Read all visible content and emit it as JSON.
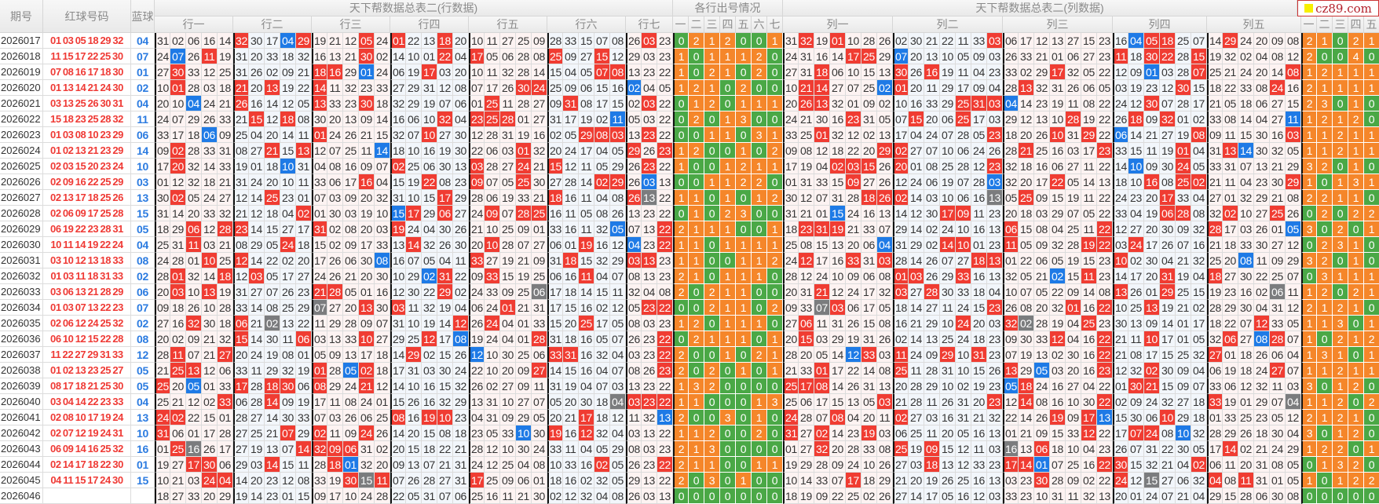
{
  "header": {
    "issue": "期号",
    "red": "红球号码",
    "blue": "蓝球",
    "row_table_title": "天下帮数据总表二(行数据)",
    "row_count_title": "各行出号情况",
    "col_table_title": "天下帮数据总表二(列数据)",
    "logo_text": "cz89.com",
    "row_groups": [
      "行一",
      "行二",
      "行三",
      "行四",
      "行五",
      "行六",
      "行七"
    ],
    "row_count_labels": [
      "一",
      "二",
      "三",
      "四",
      "五",
      "六",
      "七"
    ],
    "col_groups": [
      "列一",
      "列二",
      "列三",
      "列四",
      "列五"
    ],
    "col_count_labels": [
      "一",
      "二",
      "三",
      "四",
      "五"
    ]
  },
  "colors": {
    "red_hit": "#f03c32",
    "blue_hit": "#1e7ae6",
    "both_hit": "#7b7c7e",
    "count_zero": "#4aa846",
    "count_nonzero": "#f5862a",
    "red_text": "#ef3a35",
    "blue_text": "#2b7be0"
  },
  "rows": [
    {
      "issue": "2026017",
      "red": "01 03 05 18 29 32",
      "blue": "04",
      "row_groups": "31 02 06 16 14|32 30 17 04 29|19 21 12 05 24|01 22 13 18 20|10 11 27 25 09|28 33 15 07 08|26 03 23",
      "row_counts": "0 2 1 2 0 0 1",
      "col_groups": "31 32 19 01 10 28 26|02 30 21 22 11 33 03|06 17 12 13 27 15 23|16 04 05 18 25 07|14 29 24 20 09 08",
      "col_counts": "2 1 0 2 1"
    },
    {
      "issue": "2026018",
      "red": "11 15 17 22 25 30",
      "blue": "07",
      "row_groups": "24 07 26 11 19|31 20 33 18 32|16 13 21 30 02|14 10 01 22 04|17 05 06 28 08|25 09 27 15 12|29 03 23",
      "row_counts": "1 0 1 1 1 2 0",
      "col_groups": "24 31 16 14 17 25 29|07 20 13 10 05 09 03|26 33 21 01 06 27 23|11 18 30 22 28 15|19 32 02 04 08 12",
      "col_counts": "2 0 0 4 0"
    },
    {
      "issue": "2026019",
      "red": "07 08 16 17 18 30",
      "blue": "01",
      "row_groups": "27 30 33 12 25|31 26 02 09 21|18 16 29 01 24|06 19 17 03 20|10 11 32 28 14|15 04 05 07 08|13 23 22",
      "row_counts": "1 0 2 1 0 2 0",
      "col_groups": "27 31 18 06 10 15 13|30 26 16 19 11 04 23|33 02 29 17 32 05 22|12 09 01 03 28 07|25 21 24 20 14 08",
      "col_counts": "1 2 1 1 1"
    },
    {
      "issue": "2026020",
      "red": "01 13 14 21 24 30",
      "blue": "02",
      "row_groups": "10 01 28 03 18|21 20 13 19 22|14 11 32 23 33|27 29 31 12 08|07 17 26 30 24|25 09 06 15 16|02 04 05",
      "row_counts": "1 2 1 0 2 0 0",
      "col_groups": "10 21 14 27 07 25 02|01 20 11 29 17 09 04|28 13 32 31 26 06 05|03 19 23 12 30 15|18 22 33 08 24 16",
      "col_counts": "2 1 1 1 1"
    },
    {
      "issue": "2026021",
      "red": "03 13 25 26 30 31",
      "blue": "04",
      "row_groups": "20 10 04 24 21|26 16 14 12 05|13 33 23 30 18|32 29 19 07 06|01 25 11 28 27|09 31 08 17 15|02 03 22",
      "row_counts": "0 1 2 0 1 1 1",
      "col_groups": "20 26 13 32 01 09 02|10 16 33 29 25 31 03|04 14 23 19 11 08 22|24 12 30 07 28 17|21 05 18 06 27 15",
      "col_counts": "2 3 0 1 0"
    },
    {
      "issue": "2026022",
      "red": "15 18 23 25 28 32",
      "blue": "11",
      "row_groups": "24 07 29 26 33|21 15 12 18 08|30 20 13 09 14|16 06 10 32 04|23 25 28 01 27|31 17 19 02 11|05 03 22",
      "row_counts": "0 2 0 1 3 0 0",
      "col_groups": "24 21 30 16 23 31 05|07 15 20 06 25 17 03|29 12 13 10 28 19 22|26 18 09 32 01 02|33 08 14 04 27 11",
      "col_counts": "1 2 1 2 0"
    },
    {
      "issue": "2026023",
      "red": "01 03 08 10 23 29",
      "blue": "06",
      "row_groups": "33 17 18 06 09|25 04 20 14 11|01 24 26 21 15|32 07 10 27 30|12 28 31 19 16|02 05 29 08 03|13 23 22",
      "row_counts": "0 0 1 1 0 3 1",
      "col_groups": "33 25 01 32 12 02 13|17 04 24 07 28 05 23|18 20 26 10 31 29 22|06 14 21 27 19 08|09 11 15 30 16 03",
      "col_counts": "1 1 2 1 1"
    },
    {
      "issue": "2026024",
      "red": "01 02 13 21 23 29",
      "blue": "14",
      "row_groups": "09 02 28 33 31|08 27 21 15 13|12 07 25 11 14|18 10 16 19 30|22 06 03 01 32|20 24 17 04 05|29 26 23",
      "row_counts": "1 2 0 0 1 0 2",
      "col_groups": "09 08 12 18 22 20 29|02 27 07 10 06 24 26|28 21 25 16 03 17 23|33 15 11 19 01 04|31 13 14 30 32 05",
      "col_counts": "1 1 2 1 1"
    },
    {
      "issue": "2026025",
      "red": "02 03 15 20 23 24",
      "blue": "10",
      "row_groups": "17 20 32 14 33|19 01 18 10 31|04 08 16 09 07|02 25 06 30 13|03 28 27 24 21|15 12 11 05 29|26 23 22",
      "row_counts": "1 0 0 1 2 1 1",
      "col_groups": "17 19 04 02 03 15 26|20 01 08 25 28 12 23|32 18 16 06 27 11 22|14 10 09 30 24 05|33 31 07 13 21 29",
      "col_counts": "3 2 0 1 0"
    },
    {
      "issue": "2026026",
      "red": "02 09 16 22 25 29",
      "blue": "03",
      "row_groups": "01 12 32 18 21|31 24 20 10 11|33 06 17 16 04|15 19 22 08 23|09 07 05 25 30|27 28 14 02 29|26 03 13",
      "row_counts": "0 0 1 1 2 2 0",
      "col_groups": "01 31 33 15 09 27 26|12 24 06 19 07 28 03|32 20 17 22 05 14 13|18 10 16 08 25 02|21 11 04 23 30 29",
      "col_counts": "1 0 1 3 1"
    },
    {
      "issue": "2026027",
      "red": "02 13 17 18 25 26",
      "blue": "13",
      "row_groups": "30 02 05 24 27|12 14 25 23 01|07 03 09 20 32|31 10 15 17 29|28 06 19 33 21|18 16 11 04 08|26 13 22",
      "row_counts": "1 1 0 1 0 1 2",
      "col_groups": "30 12 07 31 28 18 26|02 14 03 10 06 16 13|05 25 09 15 19 11 22|24 23 20 17 33 04|27 01 32 29 21 08",
      "col_counts": "2 2 1 1 0"
    },
    {
      "issue": "2026028",
      "red": "02 06 09 17 25 28",
      "blue": "15",
      "row_groups": "31 14 20 33 32|21 12 18 04 02|01 30 03 19 10|15 17 29 06 27|24 09 07 28 25|16 11 05 08 26|13 23 22",
      "row_counts": "0 1 0 2 3 0 0",
      "col_groups": "31 21 01 15 24 16 13|14 12 30 17 09 11 23|20 18 03 29 07 05 22|33 04 19 06 28 08|32 02 10 27 25 26",
      "col_counts": "0 2 0 2 2"
    },
    {
      "issue": "2026029",
      "red": "06 19 22 23 28 31",
      "blue": "05",
      "row_groups": "18 29 06 12 28|23 14 15 27 17|31 02 08 20 03|19 24 04 30 26|21 10 25 09 01|33 16 11 32 05|07 13 22",
      "row_counts": "2 1 1 1 0 0 1",
      "col_groups": "18 23 31 19 21 33 07|29 14 02 24 10 16 13|06 15 08 04 25 11 22|12 27 20 30 09 32|28 17 03 26 01 05",
      "col_counts": "3 0 2 0 1"
    },
    {
      "issue": "2026030",
      "red": "10 11 14 19 22 24",
      "blue": "04",
      "row_groups": "25 31 11 03 21|08 29 05 24 18|15 02 09 17 33|13 14 32 26 30|20 10 28 07 27|06 01 19 16 12|04 23 22",
      "row_counts": "1 1 0 1 1 1 1",
      "col_groups": "25 08 15 13 20 06 04|31 29 02 14 10 01 23|11 05 09 32 28 19 22|03 24 17 26 07 16|21 18 33 30 27 12",
      "col_counts": "0 2 3 1 0"
    },
    {
      "issue": "2026031",
      "red": "03 10 12 13 18 33",
      "blue": "08",
      "row_groups": "24 28 01 10 25|12 14 22 02 20|17 26 06 30 08|16 07 05 04 11|33 27 19 21 09|31 18 15 32 29|03 13 23",
      "row_counts": "1 1 0 0 1 1 2",
      "col_groups": "24 12 17 16 33 31 03|28 14 26 07 27 18 13|01 22 06 05 19 15 23|10 02 30 04 21 32|25 20 08 11 09 29",
      "col_counts": "3 2 0 1 0"
    },
    {
      "issue": "2026032",
      "red": "01 03 11 18 31 33",
      "blue": "02",
      "row_groups": "28 01 32 14 18|12 03 05 17 27|24 26 21 20 30|10 29 02 31 22|09 33 15 19 25|06 16 11 04 07|08 13 23",
      "row_counts": "2 1 0 1 1 1 0",
      "col_groups": "28 12 24 10 09 06 08|01 03 26 29 33 16 13|32 05 21 02 15 11 23|14 17 20 31 19 04|18 27 30 22 25 07",
      "col_counts": "0 3 1 1 1"
    },
    {
      "issue": "2026033",
      "red": "03 06 13 21 28 29",
      "blue": "06",
      "row_groups": "20 03 10 13 19|31 27 07 26 23|21 28 05 01 16|12 30 22 29 02|24 33 09 25 06|17 18 14 15 11|32 04 08",
      "row_counts": "2 0 2 1 1 0 0",
      "col_groups": "20 31 21 12 24 17 32|03 27 28 30 33 18 04|10 07 05 22 09 14 08|13 26 01 29 25 15|19 23 16 02 06 11",
      "col_counts": "1 2 0 2 1"
    },
    {
      "issue": "2026034",
      "red": "01 03 07 13 22 23",
      "blue": "07",
      "row_groups": "09 18 26 10 28|33 14 08 25 29|07 27 20 13 30|03 11 32 19 04|06 24 01 21 31|17 15 16 02 12|05 23 22",
      "row_counts": "0 0 2 1 1 0 2",
      "col_groups": "09 33 07 03 06 17 05|18 14 27 11 24 15 23|26 08 20 32 01 16 22|10 25 13 19 21 02|28 29 30 04 31 12",
      "col_counts": "2 1 2 1 0"
    },
    {
      "issue": "2026035",
      "red": "02 06 12 24 25 32",
      "blue": "02",
      "row_groups": "27 16 32 30 18|06 21 02 13 22|11 29 28 09 07|31 10 19 14 12|26 24 04 01 33|15 20 25 17 05|08 03 23",
      "row_counts": "1 2 0 1 1 1 0",
      "col_groups": "27 06 11 31 26 15 08|16 21 29 10 24 20 03|32 02 28 19 04 25 23|30 13 09 14 01 17|18 22 07 12 33 05",
      "col_counts": "1 1 3 0 1"
    },
    {
      "issue": "2026036",
      "red": "06 10 12 15 22 28",
      "blue": "08",
      "row_groups": "20 02 09 21 32|15 14 30 11 06|03 13 33 10 27|29 25 12 17 08|19 24 04 01 28|31 18 16 05 07|26 23 22",
      "row_counts": "0 2 1 1 1 0 1",
      "col_groups": "20 15 03 29 19 31 26|02 14 13 25 24 18 23|09 30 33 12 04 16 22|21 11 10 17 01 05|32 06 27 08 28 07",
      "col_counts": "1 0 2 1 2"
    },
    {
      "issue": "2026037",
      "red": "11 22 27 29 31 33",
      "blue": "12",
      "row_groups": "28 11 07 21 27|20 24 19 08 01|05 09 13 17 18|14 29 02 15 26|12 10 30 25 06|33 31 16 32 04|03 23 22",
      "row_counts": "2 0 0 1 0 2 1",
      "col_groups": "28 20 05 14 12 33 03|11 24 09 29 10 31 23|07 19 13 02 30 16 22|21 08 17 15 25 32|27 01 18 26 06 04",
      "col_counts": "1 3 1 0 1"
    },
    {
      "issue": "2026038",
      "red": "01 02 13 23 25 27",
      "blue": "05",
      "row_groups": "21 25 13 12 06|33 11 29 32 19|01 28 05 02 18|17 31 03 30 24|22 10 20 09 27|14 15 16 04 07|08 26 23",
      "row_counts": "2 0 2 0 1 0 1",
      "col_groups": "21 33 01 17 22 14 08|25 11 28 31 10 15 26|13 29 05 03 20 16 23|12 32 02 30 09 04|06 19 18 24 27 07",
      "col_counts": "1 1 2 1 1"
    },
    {
      "issue": "2026039",
      "red": "08 17 18 21 25 30",
      "blue": "05",
      "row_groups": "25 20 05 01 33|17 28 18 30 06|08 29 24 21 12|14 10 16 15 32|26 02 27 09 11|31 19 04 07 03|13 23 22",
      "row_counts": "1 3 2 0 0 0 0",
      "col_groups": "25 17 08 14 26 31 13|20 28 29 10 02 19 23|05 18 24 16 27 04 22|01 30 21 15 09 07|33 06 12 32 11 03",
      "col_counts": "3 0 1 2 0"
    },
    {
      "issue": "2026040",
      "red": "03 04 14 22 23 33",
      "blue": "04",
      "row_groups": "25 21 12 02 33|06 28 14 09 19|17 11 08 24 01|15 26 16 32 29|13 31 10 27 07|05 20 30 18 04|03 23 22",
      "row_counts": "1 1 0 0 0 1 3",
      "col_groups": "25 06 17 15 13 05 03|21 28 11 26 31 20 23|12 14 08 16 10 30 22|02 09 24 32 27 18|33 19 01 29 07 04",
      "col_counts": "1 1 2 0 2"
    },
    {
      "issue": "2026041",
      "red": "02 08 10 17 19 24",
      "blue": "13",
      "row_groups": "24 02 22 15 01|28 27 14 30 33|07 03 26 06 25|08 16 19 10 23|04 31 09 29 05|20 21 17 18 12|11 32 13",
      "row_counts": "2 0 0 3 0 1 0",
      "col_groups": "24 28 07 08 04 20 11|02 27 03 16 31 21 32|22 14 26 19 09 17 13|15 30 06 10 29 18|01 33 25 23 05 12",
      "col_counts": "2 1 2 1 0"
    },
    {
      "issue": "2026042",
      "red": "02 07 12 19 24 31",
      "blue": "10",
      "row_groups": "31 06 01 17 28|27 25 21 07 29|02 11 09 24 26|14 20 15 08 18|23 05 33 10 30|19 16 12 32 04|03 13 22",
      "row_counts": "1 1 2 0 0 2 0",
      "col_groups": "31 27 02 14 23 19 03|06 25 11 20 05 16 13|01 21 09 15 33 12 22|17 07 24 08 10 32|28 29 26 18 30 04",
      "col_counts": "3 0 1 2 0"
    },
    {
      "issue": "2026043",
      "red": "06 09 14 16 25 32",
      "blue": "16",
      "row_groups": "01 25 16 26 17|27 19 13 07 14|32 09 06 31 02|20 15 18 22 21|28 12 10 30 24|33 11 04 05 29|08 03 23",
      "row_counts": "2 1 3 0 0 0 0",
      "col_groups": "01 27 32 20 28 33 08|25 19 09 15 12 11 03|16 13 06 18 10 04 23|26 07 31 22 30 05|17 14 02 21 24 29",
      "col_counts": "1 2 2 0 1"
    },
    {
      "issue": "2026044",
      "red": "02 14 17 18 22 30",
      "blue": "01",
      "row_groups": "19 27 17 30 06|29 03 14 15 11|28 18 01 32 20|09 13 07 21 31|24 12 25 04 08|10 33 16 02 05|26 23 22",
      "row_counts": "2 1 1 0 0 1 1",
      "col_groups": "19 29 28 09 24 10 26|27 03 18 13 12 33 23|17 14 01 07 25 16 22|30 15 32 21 04 02|06 11 20 31 08 05",
      "col_counts": "0 1 3 2 0"
    },
    {
      "issue": "2026045",
      "red": "04 11 15 17 24 30",
      "blue": "15",
      "row_groups": "10 21 03 24 04|14 20 23 12 08|33 19 30 15 11|07 26 28 27 31|17 25 09 06 01|18 16 02 32 05|29 13 22",
      "row_counts": "2 0 3 0 1 0 0",
      "col_groups": "10 14 33 07 17 18 29|21 20 19 26 25 16 13|03 23 30 28 09 02 22|24 12 15 27 06 32|04 08 11 31 01 05",
      "col_counts": "1 0 1 2 2"
    },
    {
      "issue": "2026046",
      "red": "",
      "blue": "",
      "row_groups": "18 27 33 20 29|19 14 23 01 15|09 17 10 24 28|22 05 31 07 06|25 16 11 21 30|02 12 32 04 08|26 03 13",
      "row_counts": "0 0 0 0 0 0 0",
      "col_groups": "18 19 09 22 25 02 26|27 14 17 05 16 12 03|33 23 10 31 11 32 13|20 01 24 07 21 04|29 15 28 06 30 08",
      "col_counts": "0 0 0 0 0"
    }
  ]
}
